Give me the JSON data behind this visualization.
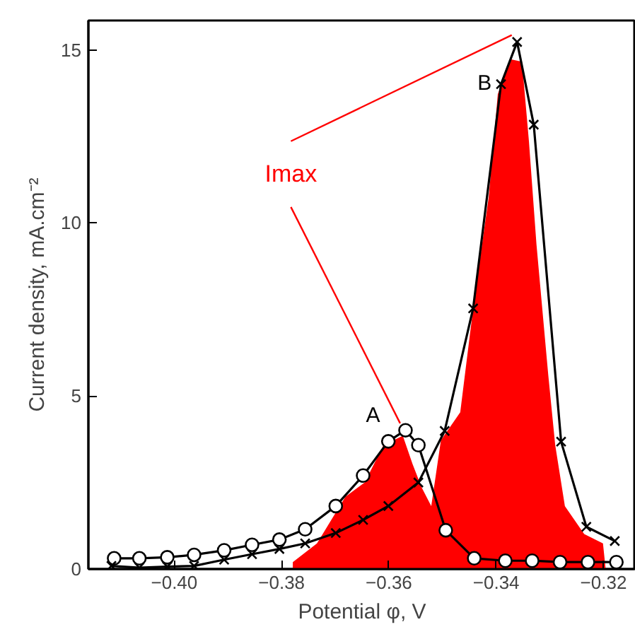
{
  "chart_data": {
    "type": "line",
    "xlabel": "Potential φ, V",
    "ylabel": "Current density, mA.cm⁻²",
    "xlim": [
      -0.416,
      -0.314
    ],
    "ylim": [
      0,
      15.85
    ],
    "xticks": [
      {
        "value": -0.4,
        "label": "−0.40"
      },
      {
        "value": -0.38,
        "label": "−0.38"
      },
      {
        "value": -0.36,
        "label": "−0.36"
      },
      {
        "value": -0.34,
        "label": "−0.34"
      },
      {
        "value": -0.32,
        "label": "−0.32"
      }
    ],
    "yticks": [
      0,
      5,
      10,
      15
    ],
    "grid": false,
    "line_style": "solid",
    "series": [
      {
        "type": "area",
        "color": "#ff0000",
        "x": [
          -0.3779,
          -0.3779,
          -0.3734,
          -0.3681,
          -0.3645,
          -0.361,
          -0.3574,
          -0.3556,
          -0.3539,
          -0.3521,
          -0.3503,
          -0.3467,
          -0.3441,
          -0.3414,
          -0.3397,
          -0.3374,
          -0.3352,
          -0.3339,
          -0.3325,
          -0.3303,
          -0.329,
          -0.3272,
          -0.3236,
          -0.3201,
          -0.3196
        ],
        "values": [
          0,
          0.2,
          0.74,
          2.09,
          2.5,
          3.58,
          3.85,
          3.04,
          2.36,
          1.82,
          3.72,
          4.53,
          7.77,
          10.74,
          13.72,
          14.73,
          14.66,
          12.36,
          9.39,
          5.61,
          3.58,
          1.82,
          1.01,
          0.74,
          0
        ]
      },
      {
        "name": "A",
        "color": "#000000",
        "marker": "circle",
        "x": [
          -0.4112,
          -0.4065,
          -0.4013,
          -0.3963,
          -0.3907,
          -0.3855,
          -0.3804,
          -0.3756,
          -0.3699,
          -0.3648,
          -0.3601,
          -0.3569,
          -0.3545,
          -0.3494,
          -0.3441,
          -0.3383,
          -0.3333,
          -0.3281,
          -0.3229,
          -0.3176
        ],
        "values": [
          0.31,
          0.31,
          0.34,
          0.41,
          0.54,
          0.7,
          0.85,
          1.15,
          1.82,
          2.7,
          3.69,
          4.01,
          3.58,
          1.12,
          0.31,
          0.24,
          0.24,
          0.2,
          0.2,
          0.2
        ]
      },
      {
        "name": "B",
        "color": "#000000",
        "marker": "cross",
        "x": [
          -0.4117,
          -0.4065,
          -0.4013,
          -0.3963,
          -0.3907,
          -0.3855,
          -0.3804,
          -0.3756,
          -0.3699,
          -0.3648,
          -0.3601,
          -0.3545,
          -0.3496,
          -0.3443,
          -0.3391,
          -0.3361,
          -0.333,
          -0.3279,
          -0.3232,
          -0.3179
        ],
        "values": [
          0.09,
          0.04,
          0.07,
          0.09,
          0.27,
          0.43,
          0.58,
          0.74,
          1.04,
          1.42,
          1.82,
          2.5,
          3.99,
          7.53,
          14.01,
          15.23,
          12.84,
          3.68,
          1.22,
          0.81
        ]
      }
    ],
    "annotations": [
      "Imax"
    ]
  }
}
